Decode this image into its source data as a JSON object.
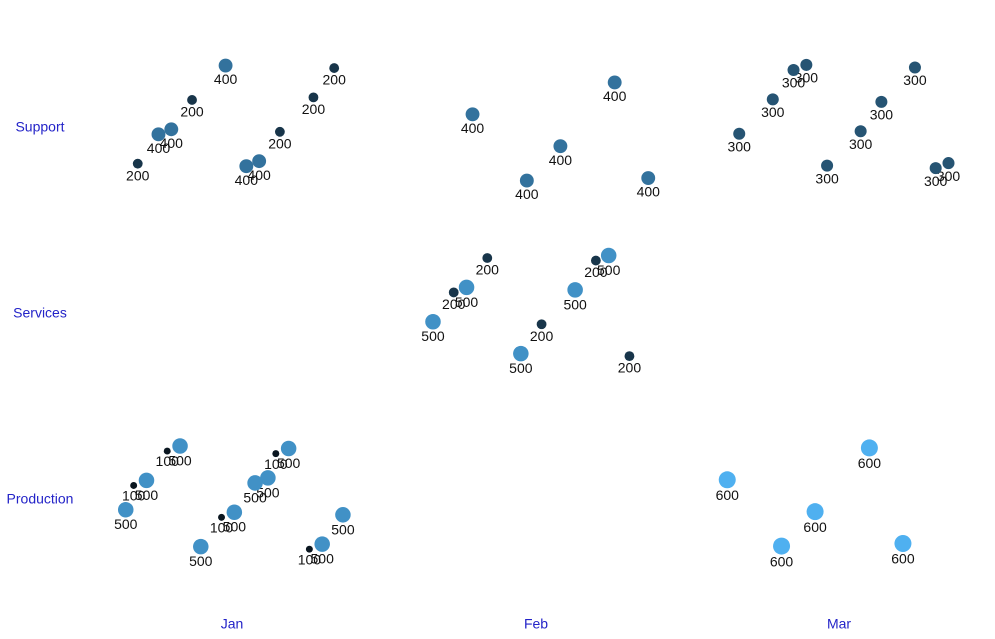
{
  "chart_data": {
    "type": "scatter",
    "x_categories": [
      "Jan",
      "Feb",
      "Mar"
    ],
    "y_categories": [
      "Support",
      "Services",
      "Production"
    ],
    "x": [
      "Jan",
      "Jan",
      "Jan",
      "Jan",
      "Jan",
      "Jan",
      "Jan",
      "Jan",
      "Jan",
      "Jan",
      "Feb",
      "Feb",
      "Feb",
      "Feb",
      "Feb",
      "Mar",
      "Mar",
      "Mar",
      "Mar",
      "Mar",
      "Mar",
      "Mar",
      "Mar",
      "Mar",
      "Mar",
      "Feb",
      "Feb",
      "Feb",
      "Feb",
      "Feb",
      "Feb",
      "Feb",
      "Feb",
      "Feb",
      "Feb",
      "Jan",
      "Jan",
      "Jan",
      "Jan",
      "Jan",
      "Jan",
      "Jan",
      "Jan",
      "Jan",
      "Jan",
      "Jan",
      "Jan",
      "Jan",
      "Jan",
      "Jan",
      "Mar",
      "Mar",
      "Mar",
      "Mar",
      "Mar"
    ],
    "y": [
      "Support",
      "Support",
      "Support",
      "Support",
      "Support",
      "Support",
      "Support",
      "Support",
      "Support",
      "Support",
      "Support",
      "Support",
      "Support",
      "Support",
      "Support",
      "Support",
      "Support",
      "Support",
      "Support",
      "Support",
      "Support",
      "Support",
      "Support",
      "Support",
      "Support",
      "Services",
      "Services",
      "Services",
      "Services",
      "Services",
      "Services",
      "Services",
      "Services",
      "Services",
      "Services",
      "Production",
      "Production",
      "Production",
      "Production",
      "Production",
      "Production",
      "Production",
      "Production",
      "Production",
      "Production",
      "Production",
      "Production",
      "Production",
      "Production",
      "Production",
      "Production",
      "Production",
      "Production",
      "Production",
      "Production"
    ],
    "values": [
      400,
      400,
      200,
      400,
      200,
      200,
      200,
      200,
      400,
      400,
      400,
      400,
      400,
      400,
      400,
      300,
      300,
      300,
      300,
      300,
      300,
      300,
      300,
      300,
      300,
      500,
      500,
      500,
      500,
      500,
      200,
      200,
      200,
      200,
      200,
      500,
      500,
      500,
      500,
      500,
      500,
      500,
      500,
      500,
      500,
      100,
      100,
      100,
      100,
      100,
      600,
      600,
      600,
      600,
      600
    ],
    "color_scale": [
      "#0a1620",
      "#4fb0f0"
    ]
  }
}
